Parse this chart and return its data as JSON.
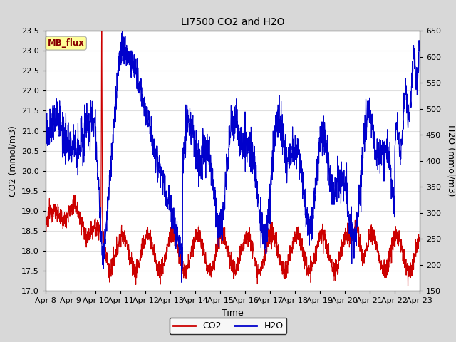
{
  "title": "LI7500 CO2 and H2O",
  "xlabel": "Time",
  "ylabel_left": "CO2 (mmol/m3)",
  "ylabel_right": "H2O (mmol/m3)",
  "ylim_left": [
    17.0,
    23.5
  ],
  "ylim_right": [
    150,
    650
  ],
  "yticks_left": [
    17.0,
    17.5,
    18.0,
    18.5,
    19.0,
    19.5,
    20.0,
    20.5,
    21.0,
    21.5,
    22.0,
    22.5,
    23.0,
    23.5
  ],
  "yticks_right": [
    150,
    200,
    250,
    300,
    350,
    400,
    450,
    500,
    550,
    600,
    650
  ],
  "xtick_labels": [
    "Apr 8",
    "Apr 9",
    "Apr 10",
    "Apr 11",
    "Apr 12",
    "Apr 13",
    "Apr 14",
    "Apr 15",
    "Apr 16",
    "Apr 17",
    "Apr 18",
    "Apr 19",
    "Apr 20",
    "Apr 21",
    "Apr 22",
    "Apr 23"
  ],
  "outer_bg_color": "#d8d8d8",
  "plot_bg_color": "#ffffff",
  "grid_color": "#e0e0e0",
  "co2_color": "#cc0000",
  "h2o_color": "#0000cc",
  "annotation_text": "MB_flux",
  "annotation_bg": "#ffff99",
  "annotation_border": "#aaaaaa",
  "annotation_text_color": "#880000",
  "legend_co2": "CO2",
  "legend_h2o": "H2O"
}
